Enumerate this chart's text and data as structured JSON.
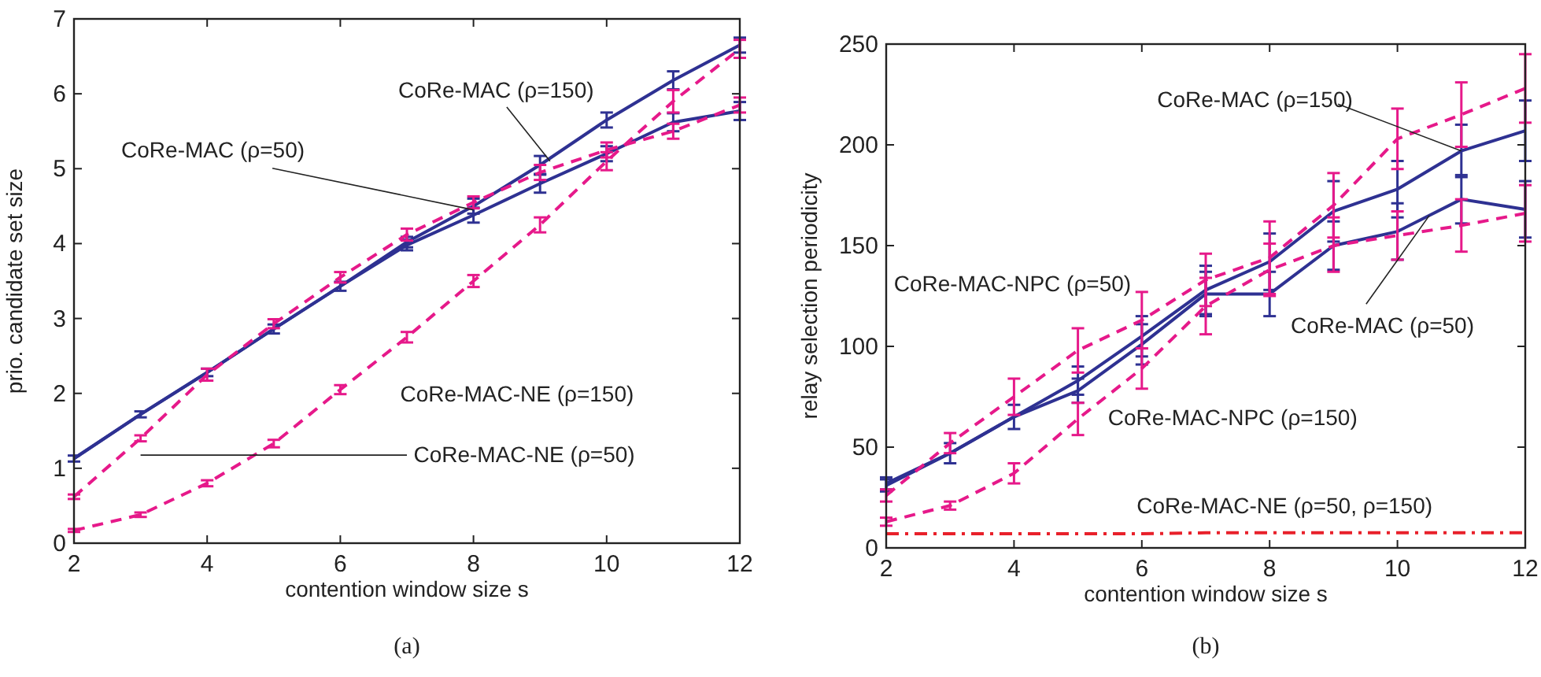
{
  "chart_data": [
    {
      "type": "line",
      "title": "(a)",
      "xlabel": "contention window size s",
      "ylabel": "prio. candidate set size",
      "x": [
        2,
        3,
        4,
        5,
        6,
        7,
        8,
        9,
        10,
        11,
        12
      ],
      "xlim": [
        2,
        12
      ],
      "xticks": [
        2,
        4,
        6,
        8,
        10,
        12
      ],
      "ylim": [
        0,
        7
      ],
      "yticks": [
        0,
        1,
        2,
        3,
        4,
        5,
        6,
        7
      ],
      "grid": false,
      "annotations": [
        {
          "text": "CoRe-MAC (ρ=150)",
          "x": 9.15,
          "y": 5.1
        },
        {
          "text": "CoRe-MAC (ρ=50)",
          "x": 8,
          "y": 4.45
        },
        "CoRe-MAC-NE (ρ=150)",
        "CoRe-MAC-NE (ρ=50)"
      ],
      "series": [
        {
          "color": "#2e3192",
          "line_style": "solid",
          "values": [
            1.13,
            1.72,
            2.28,
            2.86,
            3.43,
            4.02,
            4.5,
            5.05,
            5.65,
            6.18,
            6.65
          ],
          "errors": [
            0.04,
            0.04,
            0.05,
            0.06,
            0.06,
            0.07,
            0.1,
            0.12,
            0.1,
            0.12,
            0.1
          ]
        },
        {
          "color": "#2e3192",
          "line_style": "solid",
          "values": [
            1.13,
            1.72,
            2.28,
            2.86,
            3.43,
            3.98,
            4.38,
            4.8,
            5.2,
            5.62,
            5.77
          ],
          "errors": [
            null,
            null,
            null,
            null,
            null,
            0.07,
            0.1,
            0.12,
            0.1,
            0.12,
            0.12
          ]
        },
        {
          "color": "#e6198a",
          "line_style": "dashed",
          "values": [
            0.62,
            1.4,
            2.25,
            2.93,
            3.55,
            4.12,
            4.55,
            4.95,
            5.25,
            5.5,
            5.85
          ],
          "errors": [
            0.03,
            0.04,
            0.08,
            0.06,
            0.07,
            0.08,
            0.08,
            0.1,
            0.1,
            0.1,
            0.1
          ]
        },
        {
          "color": "#e6198a",
          "line_style": "dashed",
          "values": [
            0.17,
            0.38,
            0.8,
            1.33,
            2.05,
            2.75,
            3.5,
            4.25,
            5.1,
            5.9,
            6.6
          ],
          "errors": [
            0.02,
            0.03,
            0.04,
            0.05,
            0.06,
            0.07,
            0.08,
            0.1,
            0.12,
            0.15,
            0.12
          ]
        }
      ]
    },
    {
      "type": "line",
      "title": "(b)",
      "xlabel": "contention window size s",
      "ylabel": "relay selection periodicity",
      "x": [
        2,
        3,
        4,
        5,
        6,
        7,
        8,
        9,
        10,
        11,
        12
      ],
      "xlim": [
        2,
        12
      ],
      "xticks": [
        2,
        4,
        6,
        8,
        10,
        12
      ],
      "ylim": [
        0,
        250
      ],
      "yticks": [
        0,
        50,
        100,
        150,
        200,
        250
      ],
      "grid": false,
      "annotations": [
        {
          "text": "CoRe-MAC (ρ=150)",
          "x": 11,
          "y": 197
        },
        {
          "text": "CoRe-MAC (ρ=50)",
          "x": 10.5,
          "y": 165
        },
        "CoRe-MAC-NPC (ρ=50)",
        "CoRe-MAC-NPC (ρ=150)",
        "CoRe-MAC-NE (ρ=50, ρ=150)"
      ],
      "series": [
        {
          "color": "#2e3192",
          "line_style": "solid",
          "values": [
            32,
            47,
            65,
            83,
            105,
            128,
            142,
            167,
            178,
            197,
            207
          ],
          "errors": [
            3,
            5,
            6,
            7,
            10,
            12,
            14,
            15,
            14,
            13,
            15
          ]
        },
        {
          "color": "#2e3192",
          "line_style": "solid",
          "values": [
            31,
            47,
            65,
            78,
            101,
            126,
            126,
            150,
            157,
            173,
            168
          ],
          "errors": [
            3,
            null,
            null,
            6,
            10,
            11,
            11,
            12,
            14,
            12,
            14
          ]
        },
        {
          "color": "#e6198a",
          "line_style": "dashed",
          "values": [
            26,
            52,
            75,
            98,
            113,
            133,
            144,
            170,
            203,
            215,
            228
          ],
          "errors": [
            3,
            5,
            9,
            11,
            14,
            13,
            18,
            16,
            15,
            16,
            17
          ]
        },
        {
          "color": "#e6198a",
          "line_style": "dashed",
          "values": [
            13,
            21,
            37,
            64,
            89,
            120,
            138,
            150,
            155,
            160,
            166
          ],
          "errors": [
            2,
            2,
            5,
            8,
            10,
            14,
            13,
            [
              137,
              164
            ],
            12,
            13,
            14
          ]
        },
        {
          "color": "#e8202a",
          "line_style": "dashdot",
          "values": [
            7,
            7,
            7,
            7,
            7,
            7.5,
            7.5,
            7.5,
            7.5,
            7.5,
            7.5
          ]
        }
      ]
    }
  ]
}
